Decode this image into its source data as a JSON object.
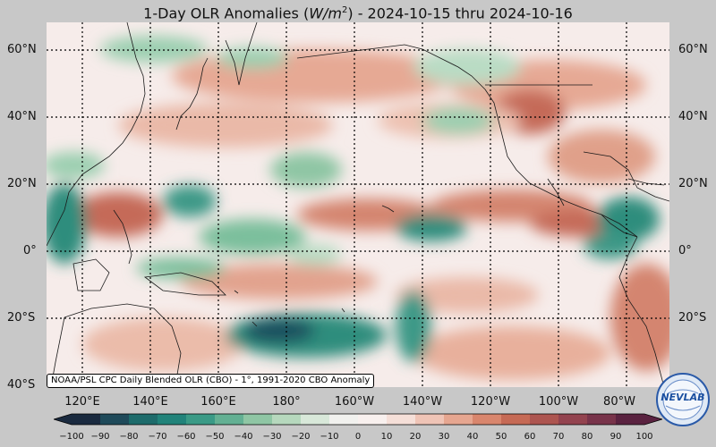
{
  "title": {
    "prefix": "1-Day OLR Anomalies (",
    "unit_base": "W/m",
    "unit_exp": "2",
    "suffix": ") - 2024-10-15 thru 2024-10-16"
  },
  "axes": {
    "lat_labels": [
      "60°N",
      "40°N",
      "20°N",
      "0°",
      "20°S",
      "40°S"
    ],
    "lon_labels": [
      "120°E",
      "140°E",
      "160°E",
      "180°",
      "160°W",
      "140°W",
      "120°W",
      "100°W",
      "80°W"
    ]
  },
  "credit": "NOAA/PSL CPC Daily Blended OLR (CBO) - 1°, 1991-2020 CBO Anomaly",
  "colorbar": {
    "ticks": [
      "−100",
      "−90",
      "−80",
      "−70",
      "−60",
      "−50",
      "−40",
      "−30",
      "−20",
      "−10",
      "0",
      "10",
      "20",
      "30",
      "40",
      "50",
      "60",
      "70",
      "80",
      "90",
      "100"
    ],
    "colors": [
      "#1a2a3f",
      "#1f4a5a",
      "#1d6b6b",
      "#21837a",
      "#3a9a86",
      "#63b093",
      "#8fc6a4",
      "#b6d8bd",
      "#d8e8d9",
      "#f1f1ee",
      "#f8f0ee",
      "#f5dfd8",
      "#efc4b6",
      "#e6a690",
      "#d9866d",
      "#c66a55",
      "#ad5550",
      "#93434f",
      "#78334a",
      "#5a2240"
    ],
    "range": [
      -100,
      100
    ],
    "extend": "both"
  },
  "logo": {
    "text": "NEVLAB"
  },
  "map": {
    "colors": {
      "background": "#f6ecea",
      "positive_light": "#efc4b6",
      "positive_mid": "#e0a08a",
      "positive_strong": "#c56a58",
      "positive_dark": "#9a4a50",
      "negative_light": "#b9dcc4",
      "negative_mid": "#7cbf9c",
      "negative_strong": "#2e8d7d",
      "negative_dark": "#1e4f5e",
      "land_outline": "#1a1a1a",
      "grid": "#000000"
    }
  }
}
